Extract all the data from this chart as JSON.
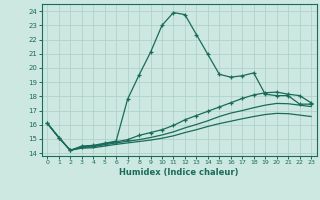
{
  "xlabel": "Humidex (Indice chaleur)",
  "bg_color": "#cce8e0",
  "line_color": "#1a6b5a",
  "grid_color": "#aacfc8",
  "xlim": [
    -0.5,
    23.5
  ],
  "ylim": [
    13.8,
    24.5
  ],
  "xticks": [
    0,
    1,
    2,
    3,
    4,
    5,
    6,
    7,
    8,
    9,
    10,
    11,
    12,
    13,
    14,
    15,
    16,
    17,
    18,
    19,
    20,
    21,
    22,
    23
  ],
  "yticks": [
    14,
    15,
    16,
    17,
    18,
    19,
    20,
    21,
    22,
    23,
    24
  ],
  "line1_x": [
    0,
    1,
    2,
    3,
    4,
    5,
    6,
    7,
    8,
    9,
    10,
    11,
    12,
    13,
    14,
    15,
    16,
    17,
    18,
    19,
    20,
    21,
    22,
    23
  ],
  "line1_y": [
    16.1,
    15.1,
    14.2,
    14.5,
    14.55,
    14.7,
    14.85,
    17.8,
    19.5,
    21.1,
    23.0,
    23.9,
    23.75,
    22.35,
    20.95,
    19.55,
    19.35,
    19.45,
    19.65,
    18.15,
    18.05,
    18.05,
    17.45,
    17.45
  ],
  "line2_x": [
    0,
    1,
    2,
    3,
    4,
    5,
    6,
    7,
    8,
    9,
    10,
    11,
    12,
    13,
    14,
    15,
    16,
    17,
    18,
    19,
    20,
    21,
    22,
    23
  ],
  "line2_y": [
    16.1,
    15.1,
    14.2,
    14.45,
    14.5,
    14.65,
    14.8,
    14.95,
    15.25,
    15.45,
    15.65,
    15.95,
    16.35,
    16.65,
    16.95,
    17.25,
    17.55,
    17.85,
    18.1,
    18.25,
    18.3,
    18.15,
    18.05,
    17.55
  ],
  "line3_x": [
    0,
    1,
    2,
    3,
    4,
    5,
    6,
    7,
    8,
    9,
    10,
    11,
    12,
    13,
    14,
    15,
    16,
    17,
    18,
    19,
    20,
    21,
    22,
    23
  ],
  "line3_y": [
    16.1,
    15.1,
    14.2,
    14.4,
    14.45,
    14.6,
    14.72,
    14.84,
    14.95,
    15.1,
    15.28,
    15.5,
    15.78,
    16.02,
    16.28,
    16.58,
    16.82,
    17.0,
    17.2,
    17.38,
    17.5,
    17.48,
    17.38,
    17.28
  ],
  "line4_x": [
    0,
    1,
    2,
    3,
    4,
    5,
    6,
    7,
    8,
    9,
    10,
    11,
    12,
    13,
    14,
    15,
    16,
    17,
    18,
    19,
    20,
    21,
    22,
    23
  ],
  "line4_y": [
    16.1,
    15.1,
    14.2,
    14.35,
    14.38,
    14.5,
    14.62,
    14.72,
    14.82,
    14.92,
    15.05,
    15.22,
    15.45,
    15.65,
    15.88,
    16.08,
    16.25,
    16.42,
    16.58,
    16.72,
    16.8,
    16.78,
    16.68,
    16.58
  ]
}
